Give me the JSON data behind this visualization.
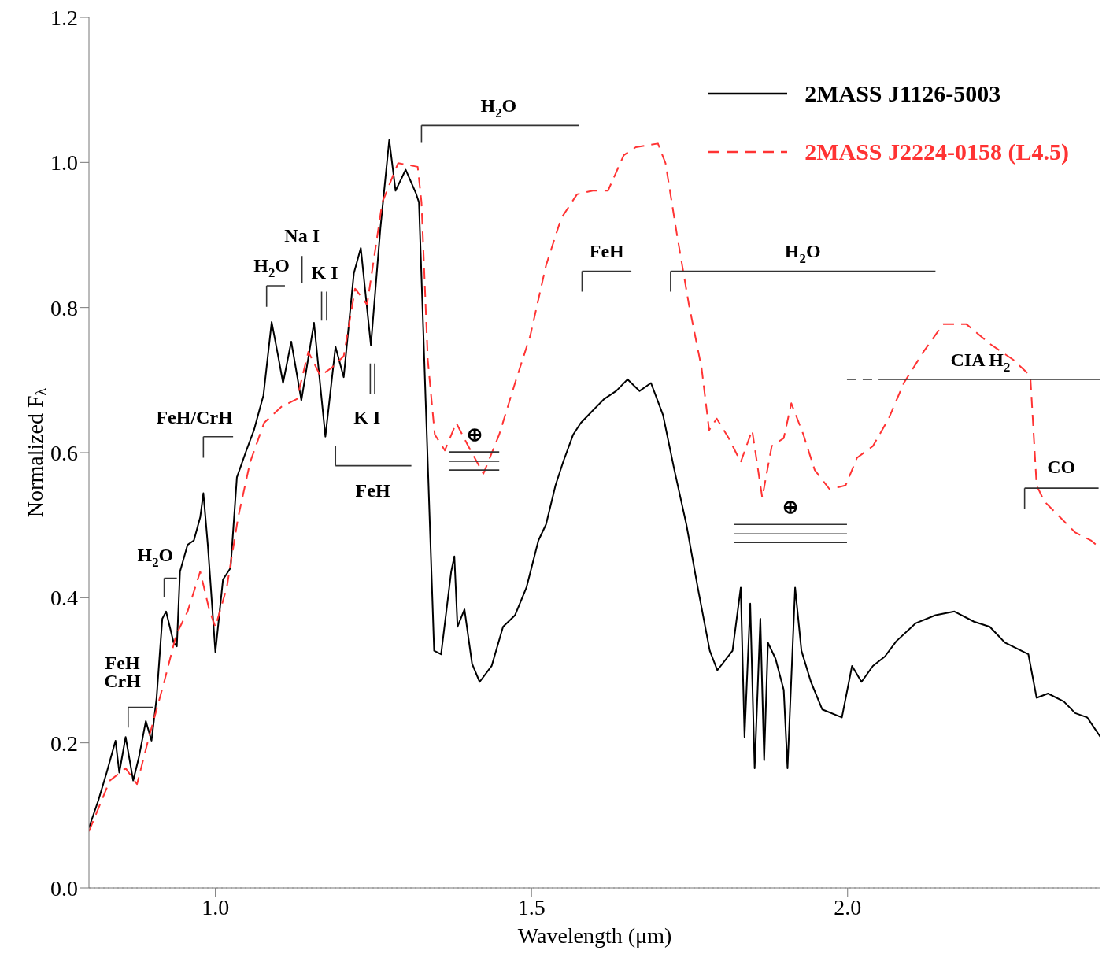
{
  "chart_data": {
    "type": "line",
    "xlabel": "Wavelength (μm)",
    "ylabel": "Normalized F$_{λ}$",
    "xlim": [
      0.8,
      2.4
    ],
    "xticks": [
      {
        "value": 1.0,
        "label": "1.0"
      },
      1.5,
      {
        "value": 2.0,
        "label": "2.0"
      }
    ],
    "ylim": [
      0,
      1.2
    ],
    "yticks": [
      {
        "value": 0,
        "label": "0.0"
      },
      0.2,
      0.4,
      0.6,
      0.8,
      {
        "value": 1.0,
        "label": "1.0"
      },
      1.2
    ],
    "legend": "top right",
    "marker": "none",
    "ref_lines": [
      {
        "axis": "y",
        "value": 0,
        "color": "#aaaaaa",
        "line_style": "dotted"
      }
    ],
    "series": [
      {
        "name": "2MASS J1126-5003",
        "color": "#000000",
        "line_style": "solid",
        "x": [
          0.8,
          0.815,
          0.828,
          0.842,
          0.848,
          0.858,
          0.87,
          0.879,
          0.89,
          0.899,
          0.907,
          0.916,
          0.922,
          0.934,
          0.939,
          0.944,
          0.956,
          0.966,
          0.976,
          0.981,
          0.988,
          1.0,
          1.012,
          1.024,
          1.034,
          1.049,
          1.061,
          1.076,
          1.089,
          1.098,
          1.107,
          1.12,
          1.136,
          1.156,
          1.174,
          1.19,
          1.203,
          1.219,
          1.23,
          1.246,
          1.261,
          1.275,
          1.285,
          1.301,
          1.317,
          1.322,
          1.346,
          1.357,
          1.373,
          1.378,
          1.383,
          1.394,
          1.406,
          1.418,
          1.437,
          1.455,
          1.474,
          1.492,
          1.511,
          1.523,
          1.538,
          1.55,
          1.566,
          1.578,
          1.597,
          1.615,
          1.634,
          1.652,
          1.671,
          1.689,
          1.708,
          1.726,
          1.745,
          1.763,
          1.782,
          1.794,
          1.818,
          1.831,
          1.837,
          1.846,
          1.853,
          1.862,
          1.868,
          1.874,
          1.886,
          1.899,
          1.905,
          1.917,
          1.927,
          1.942,
          1.96,
          1.991,
          2.007,
          2.022,
          2.04,
          2.059,
          2.077,
          2.108,
          2.139,
          2.169,
          2.2,
          2.225,
          2.249,
          2.286,
          2.299,
          2.317,
          2.342,
          2.36,
          2.379,
          2.4
        ],
        "values": [
          0.083,
          0.121,
          0.159,
          0.203,
          0.159,
          0.208,
          0.148,
          0.18,
          0.23,
          0.203,
          0.262,
          0.371,
          0.381,
          0.338,
          0.333,
          0.436,
          0.473,
          0.479,
          0.511,
          0.544,
          0.473,
          0.325,
          0.425,
          0.441,
          0.566,
          0.603,
          0.631,
          0.679,
          0.78,
          0.739,
          0.696,
          0.753,
          0.672,
          0.779,
          0.622,
          0.746,
          0.704,
          0.847,
          0.882,
          0.748,
          0.909,
          1.031,
          0.961,
          0.99,
          0.958,
          0.945,
          0.327,
          0.322,
          0.436,
          0.457,
          0.36,
          0.384,
          0.309,
          0.284,
          0.306,
          0.36,
          0.376,
          0.414,
          0.479,
          0.501,
          0.555,
          0.587,
          0.625,
          0.641,
          0.658,
          0.674,
          0.685,
          0.701,
          0.685,
          0.696,
          0.652,
          0.576,
          0.501,
          0.414,
          0.327,
          0.3,
          0.327,
          0.414,
          0.208,
          0.392,
          0.165,
          0.371,
          0.176,
          0.338,
          0.316,
          0.273,
          0.165,
          0.414,
          0.327,
          0.284,
          0.246,
          0.235,
          0.306,
          0.284,
          0.306,
          0.319,
          0.34,
          0.365,
          0.376,
          0.381,
          0.367,
          0.36,
          0.338,
          0.322,
          0.262,
          0.268,
          0.257,
          0.241,
          0.235,
          0.208
        ]
      },
      {
        "name": "2MASS J2224-0158 (L4.5)",
        "color": "#ff3333",
        "line_style": "dashed",
        "x": [
          0.8,
          0.833,
          0.858,
          0.876,
          0.895,
          0.919,
          0.938,
          0.956,
          0.976,
          0.991,
          1.0,
          1.018,
          1.036,
          1.055,
          1.077,
          1.104,
          1.129,
          1.147,
          1.166,
          1.184,
          1.203,
          1.221,
          1.24,
          1.264,
          1.289,
          1.32,
          1.326,
          1.336,
          1.347,
          1.363,
          1.381,
          1.4,
          1.424,
          1.449,
          1.474,
          1.498,
          1.523,
          1.547,
          1.572,
          1.597,
          1.621,
          1.646,
          1.665,
          1.7,
          1.712,
          1.73,
          1.749,
          1.769,
          1.781,
          1.793,
          1.812,
          1.831,
          1.849,
          1.865,
          1.88,
          1.899,
          1.911,
          1.93,
          1.948,
          1.972,
          1.997,
          2.015,
          2.04,
          2.065,
          2.089,
          2.12,
          2.151,
          2.188,
          2.225,
          2.262,
          2.289,
          2.299,
          2.311,
          2.336,
          2.36,
          2.385,
          2.4
        ],
        "values": [
          0.078,
          0.148,
          0.165,
          0.143,
          0.208,
          0.284,
          0.349,
          0.381,
          0.436,
          0.381,
          0.36,
          0.414,
          0.511,
          0.587,
          0.641,
          0.663,
          0.674,
          0.739,
          0.706,
          0.717,
          0.733,
          0.826,
          0.804,
          0.945,
          0.999,
          0.994,
          0.945,
          0.728,
          0.625,
          0.603,
          0.641,
          0.609,
          0.571,
          0.625,
          0.696,
          0.761,
          0.858,
          0.923,
          0.956,
          0.961,
          0.961,
          1.01,
          1.021,
          1.026,
          0.999,
          0.901,
          0.804,
          0.717,
          0.631,
          0.647,
          0.62,
          0.587,
          0.631,
          0.538,
          0.609,
          0.62,
          0.668,
          0.625,
          0.576,
          0.549,
          0.555,
          0.593,
          0.609,
          0.647,
          0.696,
          0.739,
          0.777,
          0.777,
          0.75,
          0.728,
          0.706,
          0.555,
          0.533,
          0.511,
          0.49,
          0.479,
          0.468
        ]
      }
    ],
    "annotations": [
      "H$_{2}$O",
      "Na I",
      "H$_{2}$O",
      "K I",
      "FeH/CrH",
      "K I",
      "FeH",
      "H$_{2}$O",
      "FeH",
      "CrH",
      "FeH",
      "H$_{2}$O",
      "CIA H$_{2}$",
      "CO",
      "⊕",
      "⊕"
    ]
  }
}
